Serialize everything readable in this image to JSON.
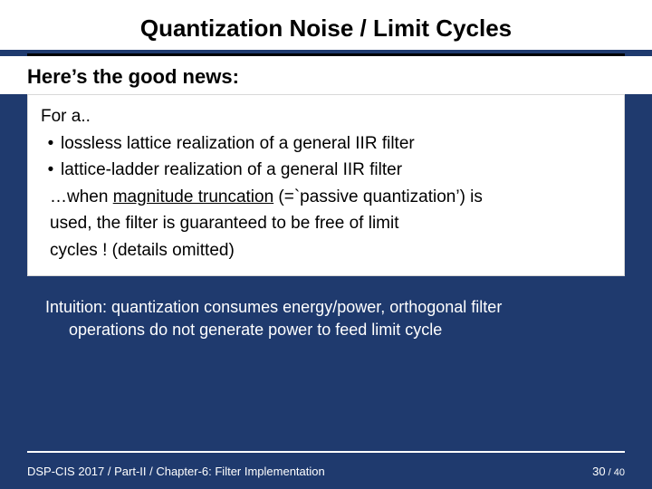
{
  "colors": {
    "page_bg": "#1f3a6e",
    "panel_bg": "#ffffff",
    "text_dark": "#000000",
    "text_light": "#ffffff",
    "rule_dark": "#000000",
    "rule_light": "#ffffff",
    "box_border": "#d8d8d8"
  },
  "title": "Quantization Noise / Limit Cycles",
  "subtitle": "Here’s the good news:",
  "box": {
    "intro": "For a..",
    "bullets": [
      "lossless lattice realization  of a general IIR filter",
      "lattice-ladder realization of a general IIR filter"
    ],
    "tail_prefix": "…when ",
    "tail_underlined": "magnitude truncation",
    "tail_after_underline": " (=`passive quantization’) is",
    "tail_line2": "used, the filter is guaranteed to be free of limit",
    "tail_line3": "cycles ! (details omitted)"
  },
  "intuition": {
    "line1": "Intuition: quantization consumes energy/power, orthogonal filter",
    "line2": "operations do not generate power to feed limit cycle"
  },
  "footer": {
    "left": "DSP-CIS 2017  /  Part-II  /  Chapter-6: Filter Implementation",
    "page_current": "30",
    "page_sep": " / ",
    "page_total": "40"
  }
}
